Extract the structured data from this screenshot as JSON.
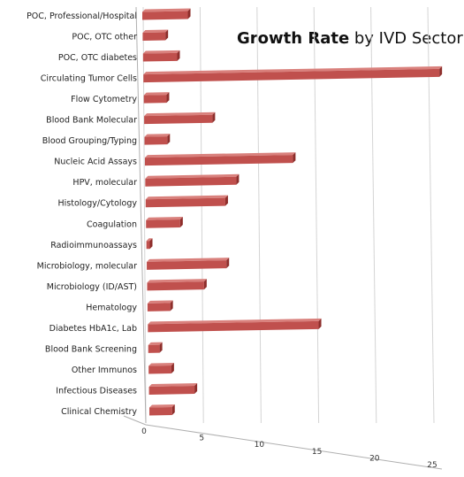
{
  "chart_data": {
    "type": "bar",
    "orientation": "horizontal",
    "title_bold": "Growth Rate",
    "title_rest": " by IVD Sector",
    "categories": [
      "POC, Professional/Hospital",
      "POC, OTC other",
      "POC, OTC diabetes",
      "Circulating Tumor Cells",
      "Flow Cytometry",
      "Blood Bank Molecular",
      "Blood Grouping/Typing",
      "Nucleic Acid Assays",
      "HPV, molecular",
      "Histology/Cytology",
      "Coagulation",
      "Radioimmunoassays",
      "Microbiology, molecular",
      "Microbiology (ID/AST)",
      "Hematology",
      "Diabetes HbA1c, Lab",
      "Blood  Bank Screening",
      "Other Immunos",
      "Infectious Diseases",
      "Clinical Chemistry"
    ],
    "values": [
      4,
      2,
      3,
      26,
      2,
      6,
      2,
      13,
      8,
      7,
      3,
      0.3,
      7,
      5,
      2,
      15,
      1,
      2,
      4,
      2
    ],
    "xlim": [
      0,
      25
    ],
    "x_ticks": [
      "0",
      "5",
      "10",
      "15",
      "20",
      "25"
    ],
    "xlabel": "",
    "ylabel": "",
    "grid": "vertical gridlines",
    "bar_color": "#c0504d",
    "style": "3-D clustered bar"
  }
}
